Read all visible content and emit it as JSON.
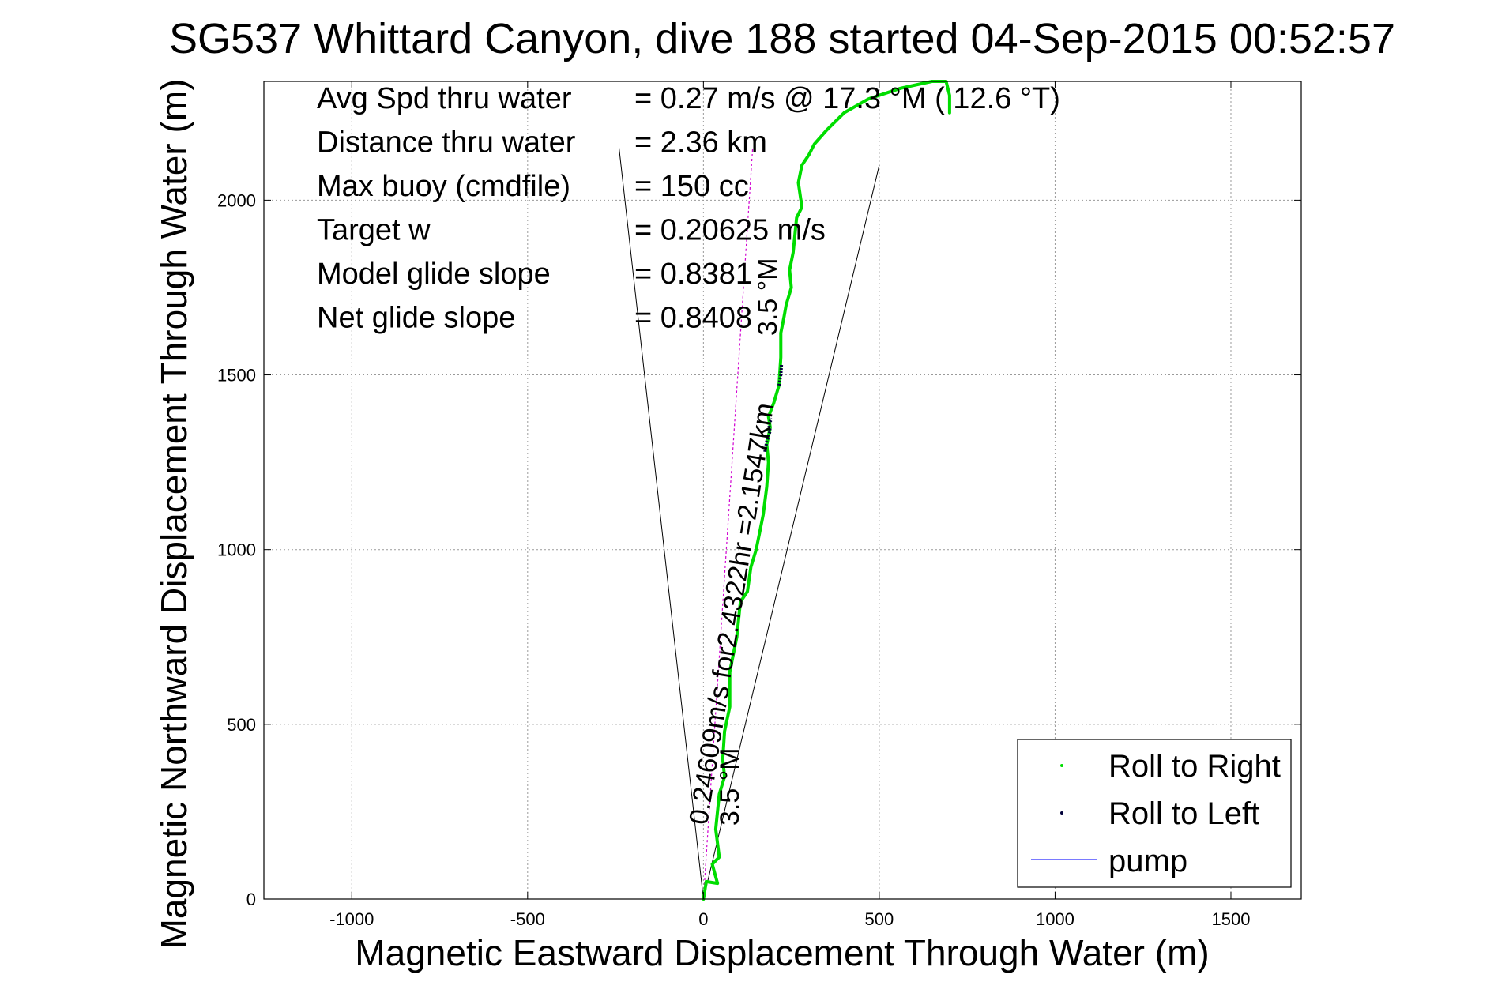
{
  "chart_data": {
    "type": "line",
    "title": "SG537 Whittard Canyon, dive 188 started 04-Sep-2015 00:52:57",
    "xlabel": "Magnetic Eastward Displacement Through Water (m)",
    "ylabel": "Magnetic Northward Displacement Through Water (m)",
    "xlim": [
      -1250,
      1700
    ],
    "ylim": [
      0,
      2340
    ],
    "xticks": [
      -1000,
      -500,
      0,
      500,
      1000,
      1500
    ],
    "yticks": [
      0,
      500,
      1000,
      1500,
      2000
    ],
    "grid": true,
    "legend_position": "bottom-right",
    "colors": {
      "roll_right": "#00dd00",
      "roll_left": "#00003a",
      "pump": "#2a2aff",
      "axes": "#000000",
      "grid": "#9a9a9a",
      "heading_line": "#d000d0"
    },
    "stats": [
      {
        "label": "Avg Spd thru water",
        "value": "=  0.27 m/s @   17.3 °M ( 12.6 °T)"
      },
      {
        "label": "Distance thru water",
        "value": "=  2.36 km"
      },
      {
        "label": "Max buoy (cmdfile)",
        "value": "= 150 cc"
      },
      {
        "label": "Target w",
        "value": "= 0.20625 m/s"
      },
      {
        "label": "Model glide slope",
        "value": "= 0.8381"
      },
      {
        "label": "Net glide slope",
        "value": "= 0.8408"
      }
    ],
    "legend": [
      {
        "label": "Roll to Right",
        "marker": "dot",
        "color_key": "roll_right"
      },
      {
        "label": "Roll to Left",
        "marker": "dot",
        "color_key": "roll_left"
      },
      {
        "label": "pump",
        "marker": "line",
        "color_key": "pump"
      }
    ],
    "annotations": {
      "heading_label_top": "3.5 °M",
      "heading_label_bottom": "3.5 °M",
      "current_label": "0.24609m/s for2.4322hr =2.1547km"
    },
    "cone_lines": [
      {
        "x": [
          0,
          -240
        ],
        "y": [
          0,
          2150
        ]
      },
      {
        "x": [
          0,
          500
        ],
        "y": [
          0,
          2100
        ]
      }
    ],
    "heading_line": {
      "x": [
        0,
        140
      ],
      "y": [
        0,
        2150
      ]
    },
    "track": {
      "x": [
        0,
        8,
        40,
        25,
        45,
        35,
        45,
        60,
        55,
        60,
        75,
        75,
        95,
        105,
        125,
        135,
        150,
        160,
        170,
        180,
        185,
        180,
        190,
        185,
        200,
        215,
        220,
        220,
        230,
        235,
        250,
        245,
        255,
        260,
        265,
        280,
        270,
        280,
        300,
        315,
        350,
        400,
        470,
        560,
        650,
        690,
        700,
        700
      ],
      "y": [
        0,
        50,
        45,
        100,
        120,
        200,
        300,
        350,
        400,
        480,
        550,
        650,
        750,
        850,
        880,
        950,
        1000,
        1050,
        1100,
        1180,
        1250,
        1300,
        1350,
        1380,
        1420,
        1470,
        1550,
        1620,
        1670,
        1700,
        1750,
        1800,
        1850,
        1900,
        1950,
        1980,
        2050,
        2100,
        2130,
        2160,
        2200,
        2250,
        2290,
        2320,
        2340,
        2340,
        2300,
        2250
      ]
    },
    "roll_left_segments": [
      {
        "x": [
          175,
          180,
          190,
          185,
          195
        ],
        "y": [
          1280,
          1310,
          1340,
          1360,
          1375
        ]
      },
      {
        "x": [
          215,
          220,
          222
        ],
        "y": [
          1470,
          1500,
          1530
        ]
      }
    ]
  }
}
